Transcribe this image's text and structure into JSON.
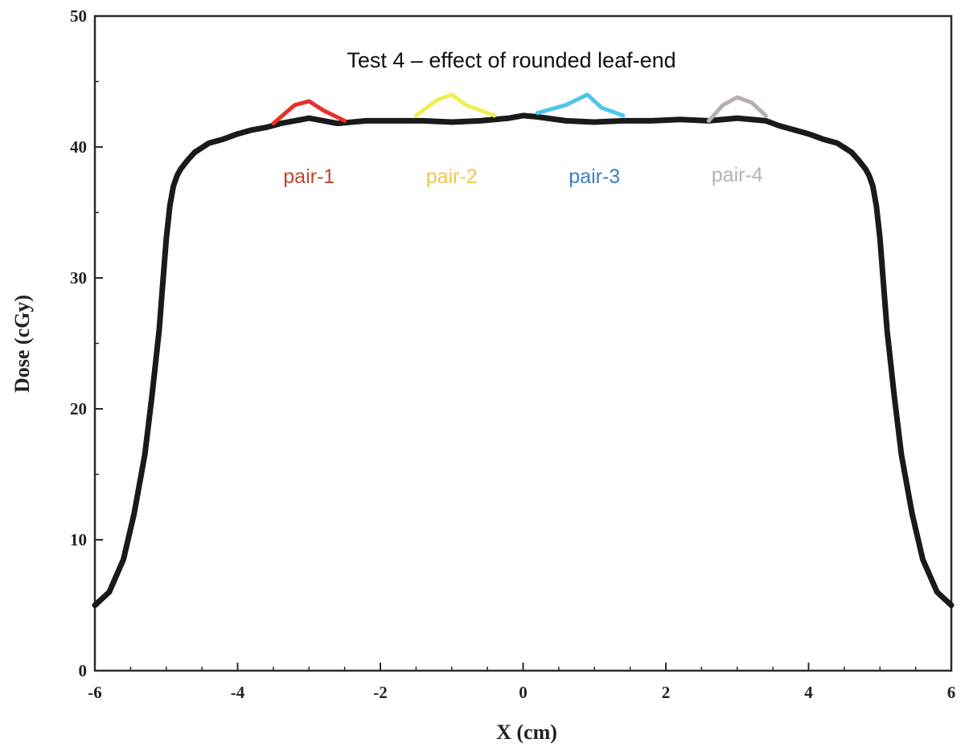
{
  "chart_data": {
    "type": "line",
    "title": "Test 4 – effect of rounded leaf-end",
    "xlabel": "X  (cm)",
    "ylabel": "Dose  (cGy)",
    "xlim": [
      -6,
      6
    ],
    "ylim": [
      0,
      50
    ],
    "x_ticks": [
      "-6",
      "-4",
      "-2",
      "0",
      "2",
      "4",
      "6"
    ],
    "y_ticks": [
      "0",
      "10",
      "20",
      "30",
      "40",
      "50"
    ],
    "grid": false,
    "series": [
      {
        "color": "#1a1a1a",
        "x": [
          -6.0,
          -5.8,
          -5.6,
          -5.45,
          -5.3,
          -5.2,
          -5.1,
          -5.05,
          -5.0,
          -4.95,
          -4.9,
          -4.85,
          -4.8,
          -4.7,
          -4.6,
          -4.4,
          -4.2,
          -4.0,
          -3.8,
          -3.6,
          -3.4,
          -3.0,
          -2.6,
          -2.2,
          -1.8,
          -1.4,
          -1.0,
          -0.6,
          -0.2,
          0.0,
          0.2,
          0.6,
          1.0,
          1.4,
          1.8,
          2.2,
          2.6,
          3.0,
          3.4,
          3.6,
          3.8,
          4.0,
          4.2,
          4.4,
          4.6,
          4.7,
          4.8,
          4.85,
          4.9,
          4.95,
          5.0,
          5.05,
          5.1,
          5.2,
          5.3,
          5.45,
          5.6,
          5.8,
          6.0
        ],
        "y": [
          5.0,
          6.0,
          8.5,
          12.0,
          16.5,
          21.0,
          26.0,
          29.5,
          33.0,
          35.5,
          37.0,
          37.8,
          38.3,
          39.0,
          39.6,
          40.3,
          40.6,
          41.0,
          41.3,
          41.5,
          41.8,
          42.2,
          41.8,
          42.0,
          42.0,
          42.0,
          41.9,
          42.0,
          42.2,
          42.4,
          42.3,
          42.0,
          41.9,
          42.0,
          42.0,
          42.1,
          42.0,
          42.2,
          42.0,
          41.6,
          41.3,
          41.0,
          40.6,
          40.3,
          39.6,
          39.0,
          38.3,
          37.8,
          37.0,
          35.5,
          33.0,
          29.5,
          26.0,
          21.0,
          16.5,
          12.0,
          8.5,
          6.0,
          5.0
        ]
      },
      {
        "name": "pair-1",
        "color": "#e8302a",
        "x": [
          -3.5,
          -3.2,
          -3.0,
          -2.8,
          -2.5
        ],
        "y": [
          41.8,
          43.2,
          43.5,
          42.8,
          42.0
        ]
      },
      {
        "name": "pair-2",
        "color": "#eeee55",
        "x": [
          -1.5,
          -1.2,
          -1.0,
          -0.8,
          -0.4
        ],
        "y": [
          42.4,
          43.6,
          44.0,
          43.2,
          42.4
        ]
      },
      {
        "name": "pair-3",
        "color": "#4ec5ea",
        "x": [
          0.2,
          0.6,
          0.9,
          1.1,
          1.4
        ],
        "y": [
          42.6,
          43.2,
          44.0,
          43.0,
          42.4
        ]
      },
      {
        "name": "pair-4",
        "color": "#b8b0ad",
        "x": [
          2.6,
          2.8,
          3.0,
          3.2,
          3.4
        ],
        "y": [
          42.0,
          43.2,
          43.8,
          43.4,
          42.4
        ]
      }
    ],
    "annotations": [
      {
        "text": "pair-1",
        "color": "#c0462a",
        "x": -3.0,
        "y": 37.8
      },
      {
        "text": "pair-2",
        "color": "#eec84d",
        "x": -1.0,
        "y": 37.8
      },
      {
        "text": "pair-3",
        "color": "#3b7fc4",
        "x": 1.0,
        "y": 37.8
      },
      {
        "text": "pair-4",
        "color": "#b3b3b3",
        "x": 3.0,
        "y": 37.9
      }
    ]
  }
}
